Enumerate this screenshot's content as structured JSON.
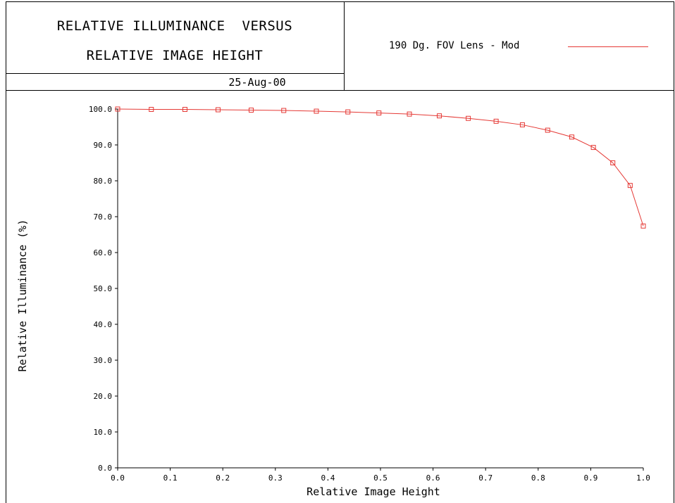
{
  "header": {
    "title_line1": "RELATIVE ILLUMINANCE  VERSUS",
    "title_line2": "RELATIVE IMAGE HEIGHT",
    "date": "25-Aug-00"
  },
  "chart_data": {
    "type": "line",
    "title": "RELATIVE ILLUMINANCE  VERSUS RELATIVE IMAGE HEIGHT",
    "xlabel": "Relative Image Height",
    "ylabel": "Relative Illuminance (%)",
    "xlim": [
      0.0,
      1.0
    ],
    "ylim": [
      0.0,
      100.0
    ],
    "xticks": [
      "0.0",
      "0.1",
      "0.2",
      "0.3",
      "0.4",
      "0.5",
      "0.6",
      "0.7",
      "0.8",
      "0.9",
      "1.0"
    ],
    "yticks": [
      "0.0",
      "10.0",
      "20.0",
      "30.0",
      "40.0",
      "50.0",
      "60.0",
      "70.0",
      "80.0",
      "90.0",
      "100.0"
    ],
    "grid": false,
    "legend_position": "top-right",
    "series": [
      {
        "name": "190 Dg. FOV Lens - Mod",
        "color": "#e53935",
        "marker": "square",
        "x": [
          0.0,
          0.064,
          0.128,
          0.191,
          0.254,
          0.316,
          0.378,
          0.438,
          0.497,
          0.555,
          0.612,
          0.667,
          0.72,
          0.77,
          0.818,
          0.864,
          0.905,
          0.942,
          0.975,
          1.0
        ],
        "y": [
          100.0,
          99.9,
          99.9,
          99.8,
          99.7,
          99.6,
          99.4,
          99.2,
          98.9,
          98.6,
          98.1,
          97.4,
          96.6,
          95.6,
          94.1,
          92.2,
          89.3,
          85.0,
          78.7,
          67.4
        ]
      }
    ]
  }
}
